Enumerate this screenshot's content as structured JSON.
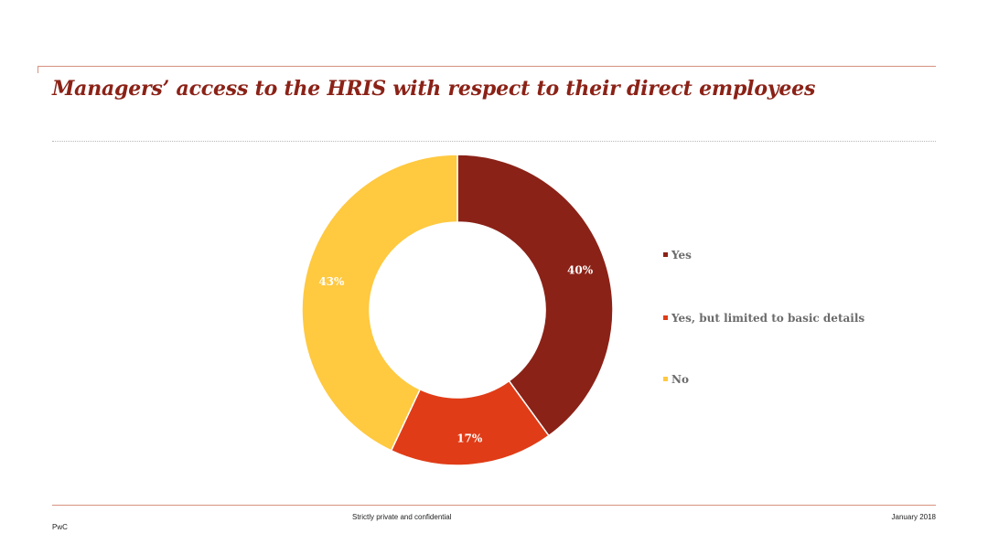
{
  "title": "Managers’ access to the HRIS with respect to their direct employees",
  "footer": {
    "confidentiality": "Strictly private and confidential",
    "date": "January 2018",
    "brand": "PwC"
  },
  "chart_data": {
    "type": "pie",
    "variant": "donut",
    "labels": [
      "Yes",
      "Yes, but limited to basic details",
      "No"
    ],
    "values": [
      40,
      17,
      43
    ],
    "data_labels": [
      "40%",
      "17%",
      "43%"
    ],
    "colors": [
      "#8b2217",
      "#e03c17",
      "#ffc940"
    ],
    "legend_position": "right"
  }
}
